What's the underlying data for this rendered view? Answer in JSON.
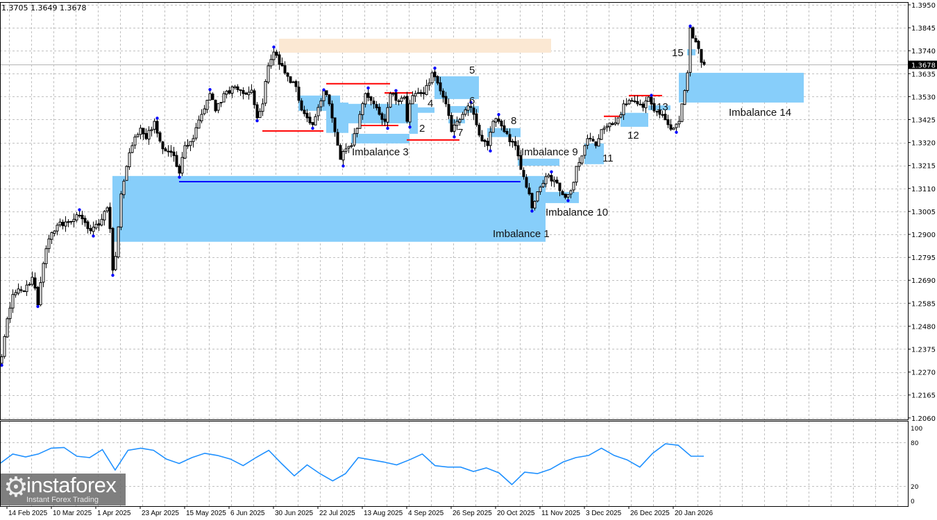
{
  "header": {
    "ohlc_text": "1.3705 1.3649 1.3678"
  },
  "logo": {
    "brand": "instaforex",
    "tagline": "Instant Forex Trading"
  },
  "chart_data": [
    {
      "type": "candlestick",
      "title": "",
      "current_price": "1.3678",
      "price_ticks": [
        "1.3950",
        "1.3845",
        "1.3740",
        "1.3635",
        "1.3530",
        "1.3425",
        "1.3320",
        "1.3215",
        "1.3110",
        "1.3005",
        "1.2900",
        "1.2795",
        "1.2690",
        "1.2585",
        "1.2480",
        "1.2375",
        "1.2270",
        "1.2165",
        "1.2060"
      ],
      "ylim": [
        1.206,
        1.395
      ],
      "grid": true,
      "time_labels": [
        {
          "text": "14 Feb 2025",
          "session": 2
        },
        {
          "text": "10 Mar 2025",
          "session": 18
        },
        {
          "text": "1 Apr 2025",
          "session": 34
        },
        {
          "text": "23 Apr 2025",
          "session": 50
        },
        {
          "text": "15 May 2025",
          "session": 66
        },
        {
          "text": "6 Jun 2025",
          "session": 82
        },
        {
          "text": "30 Jun 2025",
          "session": 98
        },
        {
          "text": "22 Jul 2025",
          "session": 114
        },
        {
          "text": "13 Aug 2025",
          "session": 130
        },
        {
          "text": "4 Sep 2025",
          "session": 146
        },
        {
          "text": "26 Sep 2025",
          "session": 162
        },
        {
          "text": "20 Oct 2025",
          "session": 178
        },
        {
          "text": "11 Nov 2025",
          "session": 194
        },
        {
          "text": "3 Dec 2025",
          "session": 210
        },
        {
          "text": "26 Dec 2025",
          "session": 226
        },
        {
          "text": "20 Jan 2026",
          "session": 242
        }
      ],
      "close_path": [
        [
          0,
          1.234
        ],
        [
          2,
          1.2514
        ],
        [
          4,
          1.2625
        ],
        [
          8,
          1.2641
        ],
        [
          11,
          1.2704
        ],
        [
          13,
          1.2577
        ],
        [
          15,
          1.2767
        ],
        [
          17,
          1.2879
        ],
        [
          20,
          1.2942
        ],
        [
          24,
          1.2958
        ],
        [
          27,
          1.299
        ],
        [
          31,
          1.2926
        ],
        [
          35,
          1.2942
        ],
        [
          37,
          1.3005
        ],
        [
          38,
          1.3021
        ],
        [
          39,
          1.2926
        ],
        [
          40,
          1.2736
        ],
        [
          41,
          1.2799
        ],
        [
          43,
          1.3085
        ],
        [
          45,
          1.3211
        ],
        [
          47,
          1.3306
        ],
        [
          50,
          1.3386
        ],
        [
          52,
          1.3338
        ],
        [
          55,
          1.3417
        ],
        [
          58,
          1.3291
        ],
        [
          61,
          1.3275
        ],
        [
          64,
          1.318
        ],
        [
          66,
          1.3306
        ],
        [
          69,
          1.3338
        ],
        [
          72,
          1.3449
        ],
        [
          75,
          1.3544
        ],
        [
          77,
          1.3465
        ],
        [
          80,
          1.3544
        ],
        [
          84,
          1.3576
        ],
        [
          87,
          1.3544
        ],
        [
          90,
          1.356
        ],
        [
          92,
          1.3433
        ],
        [
          94,
          1.3497
        ],
        [
          96,
          1.3671
        ],
        [
          98,
          1.3734
        ],
        [
          99,
          1.3719
        ],
        [
          101,
          1.3671
        ],
        [
          103,
          1.3623
        ],
        [
          106,
          1.3576
        ],
        [
          107,
          1.3513
        ],
        [
          110,
          1.3433
        ],
        [
          112,
          1.3402
        ],
        [
          114,
          1.3481
        ],
        [
          116,
          1.356
        ],
        [
          118,
          1.3497
        ],
        [
          120,
          1.337
        ],
        [
          122,
          1.3243
        ],
        [
          124,
          1.3291
        ],
        [
          126,
          1.3306
        ],
        [
          129,
          1.3449
        ],
        [
          131,
          1.3544
        ],
        [
          134,
          1.3497
        ],
        [
          136,
          1.3449
        ],
        [
          138,
          1.3417
        ],
        [
          140,
          1.3544
        ],
        [
          142,
          1.3513
        ],
        [
          145,
          1.3528
        ],
        [
          146,
          1.3417
        ],
        [
          147,
          1.3497
        ],
        [
          149,
          1.3544
        ],
        [
          151,
          1.3544
        ],
        [
          154,
          1.3592
        ],
        [
          155,
          1.3639
        ],
        [
          157,
          1.3592
        ],
        [
          159,
          1.3528
        ],
        [
          160,
          1.3497
        ],
        [
          162,
          1.337
        ],
        [
          164,
          1.3417
        ],
        [
          166,
          1.3449
        ],
        [
          169,
          1.3481
        ],
        [
          170,
          1.3449
        ],
        [
          172,
          1.3354
        ],
        [
          175,
          1.3306
        ],
        [
          177,
          1.3417
        ],
        [
          179,
          1.3417
        ],
        [
          181,
          1.337
        ],
        [
          184,
          1.3322
        ],
        [
          186,
          1.3259
        ],
        [
          188,
          1.3164
        ],
        [
          190,
          1.3085
        ],
        [
          191,
          1.3021
        ],
        [
          194,
          1.3116
        ],
        [
          196,
          1.3164
        ],
        [
          199,
          1.3148
        ],
        [
          201,
          1.31
        ],
        [
          203,
          1.3069
        ],
        [
          205,
          1.31
        ],
        [
          207,
          1.3211
        ],
        [
          209,
          1.3259
        ],
        [
          211,
          1.3338
        ],
        [
          214,
          1.3306
        ],
        [
          215,
          1.3338
        ],
        [
          217,
          1.3386
        ],
        [
          220,
          1.3402
        ],
        [
          222,
          1.3433
        ],
        [
          224,
          1.3497
        ],
        [
          226,
          1.3513
        ],
        [
          229,
          1.3497
        ],
        [
          231,
          1.3481
        ],
        [
          233,
          1.3528
        ],
        [
          235,
          1.3465
        ],
        [
          237,
          1.3449
        ],
        [
          240,
          1.3402
        ],
        [
          242,
          1.3386
        ],
        [
          244,
          1.3417
        ],
        [
          245,
          1.3497
        ],
        [
          247,
          1.3639
        ],
        [
          248,
          1.3845
        ],
        [
          249,
          1.3798
        ],
        [
          251,
          1.375
        ],
        [
          252,
          1.3687
        ],
        [
          253,
          1.3678
        ]
      ],
      "supply_zone": {
        "sessions": [
          100,
          198
        ],
        "price": [
          1.3795,
          1.3731
        ],
        "color": "#fbe8d3"
      },
      "zones": [
        {
          "label": "Imbalance 1",
          "sessions": [
            40,
            196
          ],
          "price": [
            1.3167,
            1.2866
          ]
        },
        {
          "label": "",
          "sessions": [
            107,
            122
          ],
          "price": [
            1.3535,
            1.3465
          ]
        },
        {
          "label": "",
          "sessions": [
            117,
            125
          ],
          "price": [
            1.3503,
            1.3364
          ]
        },
        {
          "label": "",
          "sessions": [
            125,
            150
          ],
          "price": [
            1.3497,
            1.3408
          ]
        },
        {
          "label": "Imbalance 3",
          "sessions": [
            126,
            147
          ],
          "price": [
            1.336,
            1.3316
          ]
        },
        {
          "label": "2",
          "sessions": [
            147,
            150
          ],
          "price": [
            1.3497,
            1.336
          ]
        },
        {
          "label": "4",
          "sessions": [
            150,
            156
          ],
          "price": [
            1.3481,
            1.3456
          ]
        },
        {
          "label": "5",
          "sessions": [
            156,
            172
          ],
          "price": [
            1.3623,
            1.3519
          ]
        },
        {
          "label": "6",
          "sessions": [
            161,
            172
          ],
          "price": [
            1.3487,
            1.3456
          ]
        },
        {
          "label": "7",
          "sessions": [
            161,
            167
          ],
          "price": [
            1.3427,
            1.3408
          ]
        },
        {
          "label": "8",
          "sessions": [
            175,
            187
          ],
          "price": [
            1.3386,
            1.3345
          ]
        },
        {
          "label": "Imbalance 9",
          "sessions": [
            186,
            201
          ],
          "price": [
            1.3246,
            1.3214
          ]
        },
        {
          "label": "",
          "sessions": [
            187,
            196
          ],
          "price": [
            1.3116,
            1.3021
          ]
        },
        {
          "label": "Imbalance 10",
          "sessions": [
            196,
            208
          ],
          "price": [
            1.3094,
            1.3043
          ]
        },
        {
          "label": "11",
          "sessions": [
            210,
            217
          ],
          "price": [
            1.3316,
            1.3221
          ]
        },
        {
          "label": "12",
          "sessions": [
            223,
            233
          ],
          "price": [
            1.3456,
            1.3392
          ]
        },
        {
          "label": "13",
          "sessions": [
            233,
            241
          ],
          "price": [
            1.349,
            1.3468
          ]
        },
        {
          "label": "Imbalance 14",
          "sessions": [
            244,
            289
          ],
          "price": [
            1.3639,
            1.3503
          ]
        },
        {
          "label": "15",
          "sessions": [
            247,
            250
          ],
          "price": [
            1.3747,
            1.3719
          ]
        }
      ],
      "zone_color": "#87cefa",
      "support_line": {
        "price": 1.3141,
        "sessions": [
          64,
          187
        ],
        "color": "#0000ff"
      },
      "red_levels": [
        {
          "price": 1.3373,
          "sessions": [
            94,
            116
          ]
        },
        {
          "price": 1.3589,
          "sessions": [
            117,
            140
          ]
        },
        {
          "price": 1.3398,
          "sessions": [
            129,
            143
          ]
        },
        {
          "price": 1.3547,
          "sessions": [
            138,
            148
          ]
        },
        {
          "price": 1.3332,
          "sessions": [
            146,
            165
          ]
        },
        {
          "price": 1.344,
          "sessions": [
            217,
            223
          ]
        },
        {
          "price": 1.3535,
          "sessions": [
            226,
            238
          ]
        }
      ],
      "red_color": "#ff0000",
      "rsi": {
        "levels": [
          "100",
          "80",
          "20",
          "0"
        ],
        "color": "#1e90ff",
        "values": [
          51,
          64,
          60,
          64,
          72,
          73,
          61,
          59,
          70,
          42,
          69,
          72,
          69,
          57,
          51,
          59,
          65,
          62,
          57,
          48,
          59,
          69,
          51,
          34,
          49,
          37,
          27,
          37,
          59,
          56,
          53,
          49,
          56,
          64,
          48,
          46,
          46,
          40,
          45,
          38,
          22,
          39,
          37,
          43,
          53,
          59,
          62,
          72,
          62,
          56,
          46,
          65,
          78,
          76,
          61,
          61
        ]
      }
    }
  ]
}
